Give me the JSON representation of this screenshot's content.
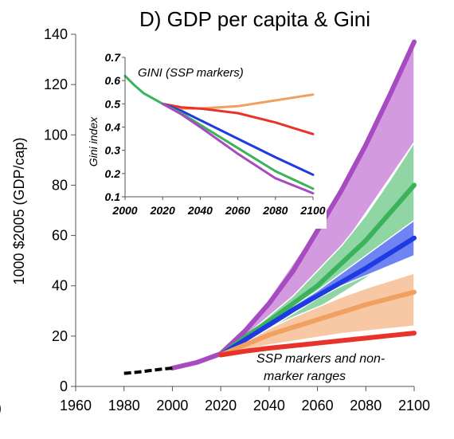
{
  "chart_data": [
    {
      "type": "area",
      "title": "D) GDP per capita & Gini",
      "xlabel": "",
      "ylabel": "1000 $2005 (GDP/cap)",
      "xlim": [
        1960,
        2100
      ],
      "ylim": [
        0,
        140
      ],
      "x_ticks": [
        "1960",
        "1980",
        "2000",
        "2020",
        "2040",
        "2060",
        "2080",
        "2100"
      ],
      "y_ticks": [
        "0",
        "20",
        "40",
        "60",
        "80",
        "100",
        "120",
        "140"
      ],
      "annotation": [
        "SSP markers and  non-",
        "marker ranges"
      ],
      "colors": {
        "purple": "#a64cc0",
        "purple_band": "#d39ae0",
        "green": "#3cb35a",
        "green_band": "#8fd6a4",
        "blue": "#1d3be0",
        "blue_band": "#6f83f2",
        "orange": "#f0a060",
        "orange_band": "#f8c8a4",
        "red": "#e8332a",
        "history": "#000000"
      },
      "history": {
        "x": [
          1980,
          1985,
          1990,
          1995,
          2000
        ],
        "y": [
          5.2,
          5.6,
          6.2,
          6.8,
          7.3
        ]
      },
      "bands": [
        {
          "color": "purple",
          "x": [
            2020,
            2030,
            2040,
            2050,
            2060,
            2070,
            2080,
            2090,
            2100
          ],
          "lower": [
            12,
            18,
            24,
            33,
            43,
            55,
            69,
            83,
            97
          ],
          "upper": [
            12,
            22.5,
            35,
            49,
            63,
            79,
            96,
            115,
            137
          ]
        },
        {
          "color": "green",
          "x": [
            2020,
            2030,
            2040,
            2050,
            2060,
            2070,
            2080,
            2090,
            2100
          ],
          "lower": [
            12,
            18,
            22,
            26,
            31,
            37,
            43,
            50,
            57
          ],
          "upper": [
            12,
            20,
            28,
            36,
            46,
            56,
            68,
            82,
            97
          ]
        },
        {
          "color": "blue",
          "x": [
            2020,
            2030,
            2040,
            2050,
            2060,
            2070,
            2080,
            2090,
            2100
          ],
          "lower": [
            12,
            17.5,
            23,
            29,
            35,
            40,
            44,
            48,
            52
          ],
          "upper": [
            12,
            18.5,
            26,
            32,
            38,
            45,
            52,
            59,
            66
          ]
        },
        {
          "color": "orange",
          "x": [
            2020,
            2030,
            2040,
            2050,
            2060,
            2070,
            2080,
            2090,
            2100
          ],
          "lower": [
            12,
            14.5,
            16.5,
            18,
            19.5,
            21,
            22,
            23,
            24
          ],
          "upper": [
            12,
            17.5,
            23,
            27.5,
            31.5,
            35.5,
            39,
            42,
            45
          ]
        }
      ],
      "series": [
        {
          "color": "purple",
          "x": [
            2000,
            2010,
            2020,
            2030,
            2040,
            2050,
            2060,
            2070,
            2080,
            2090,
            2100
          ],
          "y": [
            7.3,
            9.5,
            13,
            22,
            33,
            46,
            62,
            78,
            96,
            116,
            137
          ]
        },
        {
          "color": "green",
          "x": [
            2020,
            2030,
            2040,
            2050,
            2060,
            2070,
            2080,
            2090,
            2100
          ],
          "y": [
            12.5,
            19.5,
            26,
            33,
            40,
            49,
            58,
            69,
            80
          ]
        },
        {
          "color": "blue",
          "x": [
            2020,
            2030,
            2040,
            2050,
            2060,
            2070,
            2080,
            2090,
            2100
          ],
          "y": [
            12.5,
            18.5,
            24.5,
            30.5,
            36,
            41.5,
            47,
            53,
            59
          ]
        },
        {
          "color": "orange",
          "x": [
            2020,
            2030,
            2040,
            2050,
            2060,
            2070,
            2080,
            2090,
            2100
          ],
          "y": [
            12.5,
            16.5,
            20.5,
            23.5,
            26.5,
            29.5,
            32.5,
            35,
            37.5
          ]
        },
        {
          "color": "red",
          "x": [
            2020,
            2030,
            2040,
            2050,
            2060,
            2070,
            2080,
            2090,
            2100
          ],
          "y": [
            12.5,
            14,
            15.2,
            16.2,
            17.2,
            18.2,
            19.2,
            20.2,
            21.2
          ]
        }
      ]
    },
    {
      "type": "line",
      "title": "GINI (SSP markers)",
      "xlabel": "",
      "ylabel": "Gini index",
      "xlim": [
        2000,
        2100
      ],
      "ylim": [
        0.1,
        0.7
      ],
      "x_ticks": [
        "2000",
        "2020",
        "2040",
        "2060",
        "2080",
        "2100"
      ],
      "y_ticks": [
        "0.1",
        "0.2",
        "0.3",
        "0.4",
        "0.5",
        "0.6",
        "0.7"
      ],
      "series": [
        {
          "color": "orange",
          "x": [
            2020,
            2030,
            2040,
            2060,
            2080,
            2100
          ],
          "y": [
            0.5,
            0.48,
            0.48,
            0.49,
            0.515,
            0.54
          ]
        },
        {
          "color": "red",
          "x": [
            2020,
            2030,
            2040,
            2060,
            2080,
            2100
          ],
          "y": [
            0.5,
            0.485,
            0.48,
            0.46,
            0.42,
            0.37
          ]
        },
        {
          "color": "blue",
          "x": [
            2020,
            2030,
            2040,
            2060,
            2080,
            2100
          ],
          "y": [
            0.5,
            0.47,
            0.43,
            0.35,
            0.27,
            0.195
          ]
        },
        {
          "color": "green",
          "x": [
            2000,
            2005,
            2010,
            2020,
            2030,
            2040,
            2060,
            2080,
            2100
          ],
          "y": [
            0.62,
            0.58,
            0.545,
            0.5,
            0.46,
            0.41,
            0.31,
            0.21,
            0.135
          ]
        },
        {
          "color": "purple",
          "x": [
            2020,
            2030,
            2040,
            2060,
            2080,
            2100
          ],
          "y": [
            0.5,
            0.455,
            0.4,
            0.285,
            0.18,
            0.115
          ]
        }
      ]
    }
  ]
}
